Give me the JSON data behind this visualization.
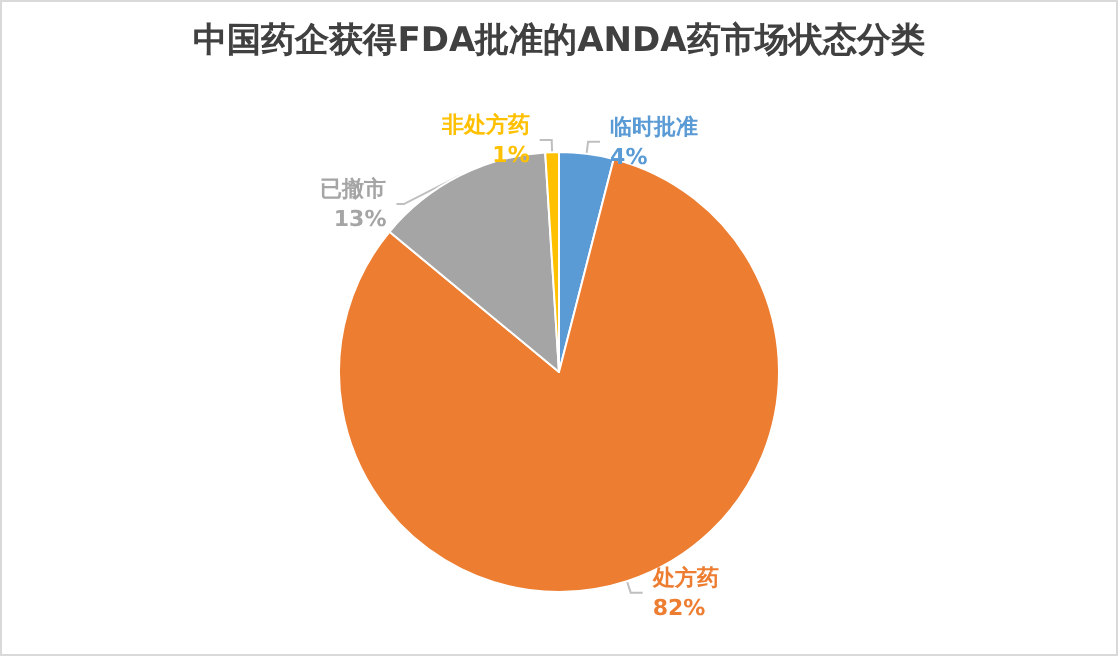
{
  "chart_data": {
    "type": "pie",
    "title": "中国药企获得FDA批准的ANDA药市场状态分类",
    "categories": [
      "临时批准",
      "处方药",
      "已撤市",
      "非处方药"
    ],
    "values": [
      4,
      82,
      13,
      1
    ],
    "colors": [
      "#5b9bd5",
      "#ed7d31",
      "#a5a5a5",
      "#ffc000"
    ],
    "value_labels": [
      "4%",
      "82%",
      "13%",
      "1%"
    ],
    "legend": false
  }
}
